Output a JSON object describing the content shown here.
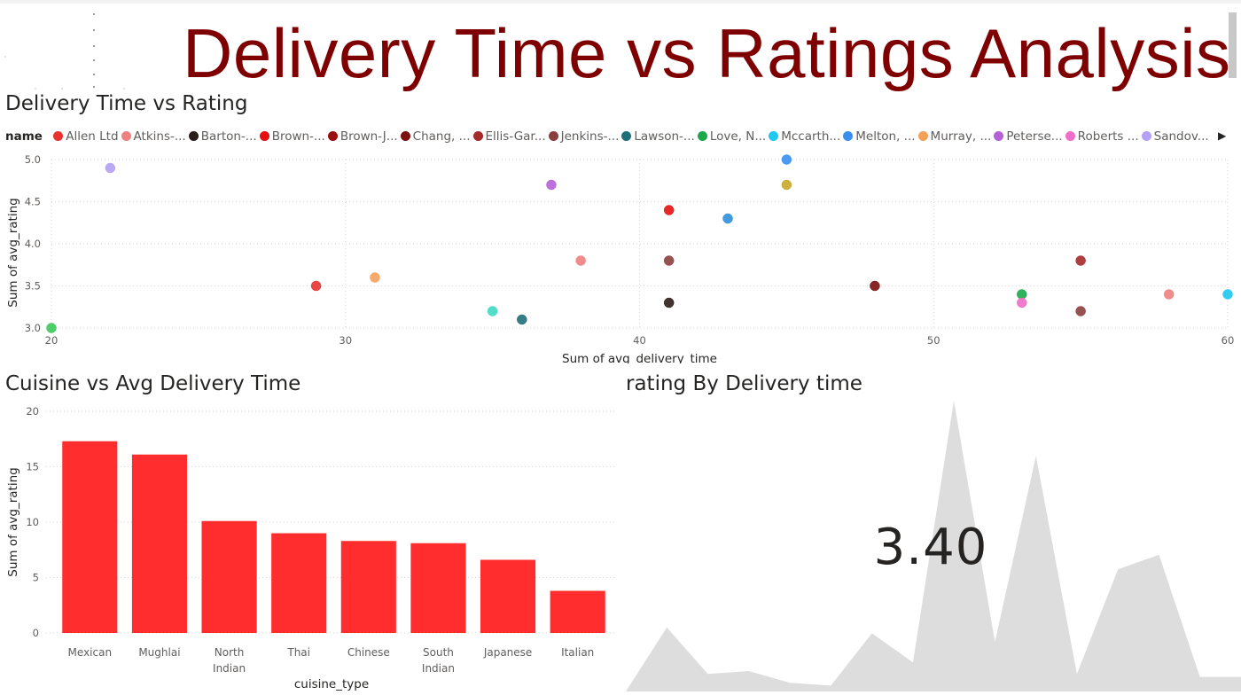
{
  "header": {
    "title": "Delivery Time vs Ratings Analysis"
  },
  "scatter_section": {
    "title": "Delivery Time vs Rating",
    "legend_label": "name",
    "legend_items": [
      {
        "label": "Allen Ltd",
        "color": "#e8322d"
      },
      {
        "label": "Atkins-...",
        "color": "#f08080"
      },
      {
        "label": "Barton-...",
        "color": "#2b1d1a"
      },
      {
        "label": "Brown-...",
        "color": "#e60f0f"
      },
      {
        "label": "Brown-J...",
        "color": "#990f0f"
      },
      {
        "label": "Chang, ...",
        "color": "#7a1010"
      },
      {
        "label": "Ellis-Gar...",
        "color": "#a52a2a"
      },
      {
        "label": "Jenkins-...",
        "color": "#8b3e3e"
      },
      {
        "label": "Lawson-...",
        "color": "#1f6f7a"
      },
      {
        "label": "Love, N...",
        "color": "#1aa84a"
      },
      {
        "label": "Mccarth...",
        "color": "#1ec8f0"
      },
      {
        "label": "Melton, ...",
        "color": "#3a8ef0"
      },
      {
        "label": "Murray, ...",
        "color": "#f5a05a"
      },
      {
        "label": "Peterse...",
        "color": "#b660d8"
      },
      {
        "label": "Roberts ...",
        "color": "#f06ec8"
      },
      {
        "label": "Sandov...",
        "color": "#b4a0f5"
      }
    ]
  },
  "bar_section": {
    "title": "Cuisine vs Avg Delivery Time"
  },
  "area_section": {
    "title": "rating By Delivery time",
    "kpi_value": "3.40",
    "area_color": "#dddddd",
    "area_values": [
      0.0,
      0.22,
      0.06,
      0.07,
      0.03,
      0.02,
      0.2,
      0.1,
      1.0,
      0.17,
      0.81,
      0.06,
      0.42,
      0.47,
      0.05,
      0.05
    ]
  },
  "chart_data": [
    {
      "type": "scatter",
      "xlabel": "Sum of avg_delivery_time",
      "ylabel": "Sum of avg_rating",
      "xlim": [
        20,
        60
      ],
      "ylim": [
        3.0,
        5.0
      ],
      "xticks": [
        "20",
        "30",
        "40",
        "50",
        "60"
      ],
      "yticks": [
        "3.0",
        "3.5",
        "4.0",
        "4.5",
        "5.0"
      ],
      "grid": true,
      "legend_position": "top",
      "points": [
        {
          "x": 20,
          "y": 3.0,
          "color": "#3cc85a"
        },
        {
          "x": 22,
          "y": 4.9,
          "color": "#b4a0f5"
        },
        {
          "x": 29,
          "y": 3.5,
          "color": "#e8322d"
        },
        {
          "x": 31,
          "y": 3.6,
          "color": "#f5a05a"
        },
        {
          "x": 35,
          "y": 3.2,
          "color": "#40d8c0"
        },
        {
          "x": 36,
          "y": 3.1,
          "color": "#1f6f7a"
        },
        {
          "x": 37,
          "y": 4.7,
          "color": "#b660d8"
        },
        {
          "x": 38,
          "y": 3.8,
          "color": "#f08080"
        },
        {
          "x": 41,
          "y": 4.4,
          "color": "#e60f0f"
        },
        {
          "x": 41,
          "y": 3.8,
          "color": "#8b3e3e"
        },
        {
          "x": 41,
          "y": 3.3,
          "color": "#2b1d1a"
        },
        {
          "x": 43,
          "y": 4.3,
          "color": "#2f8fd8"
        },
        {
          "x": 45,
          "y": 5.0,
          "color": "#3a8ef0"
        },
        {
          "x": 45,
          "y": 4.7,
          "color": "#c8a82a"
        },
        {
          "x": 48,
          "y": 3.5,
          "color": "#7a1010"
        },
        {
          "x": 53,
          "y": 3.4,
          "color": "#1aa84a"
        },
        {
          "x": 53,
          "y": 3.3,
          "color": "#f06ec8"
        },
        {
          "x": 55,
          "y": 3.8,
          "color": "#a52a2a"
        },
        {
          "x": 55,
          "y": 3.2,
          "color": "#8b3e3e"
        },
        {
          "x": 58,
          "y": 3.4,
          "color": "#f08080"
        },
        {
          "x": 60,
          "y": 3.4,
          "color": "#1ec8f0"
        }
      ]
    },
    {
      "type": "bar",
      "xlabel": "cuisine_type",
      "ylabel": "Sum of avg_rating",
      "ylim": [
        0,
        20
      ],
      "yticks": [
        "0",
        "5",
        "10",
        "15",
        "20"
      ],
      "grid": true,
      "bar_color": "#ff2d2d",
      "categories": [
        {
          "lines": [
            "Mexican"
          ]
        },
        {
          "lines": [
            "Mughlai"
          ]
        },
        {
          "lines": [
            "North",
            "Indian"
          ]
        },
        {
          "lines": [
            "Thai"
          ]
        },
        {
          "lines": [
            "Chinese"
          ]
        },
        {
          "lines": [
            "South",
            "Indian"
          ]
        },
        {
          "lines": [
            "Japanese"
          ]
        },
        {
          "lines": [
            "Italian"
          ]
        }
      ],
      "values": [
        17.3,
        16.1,
        10.1,
        9.0,
        8.3,
        8.1,
        6.6,
        3.8
      ]
    }
  ]
}
